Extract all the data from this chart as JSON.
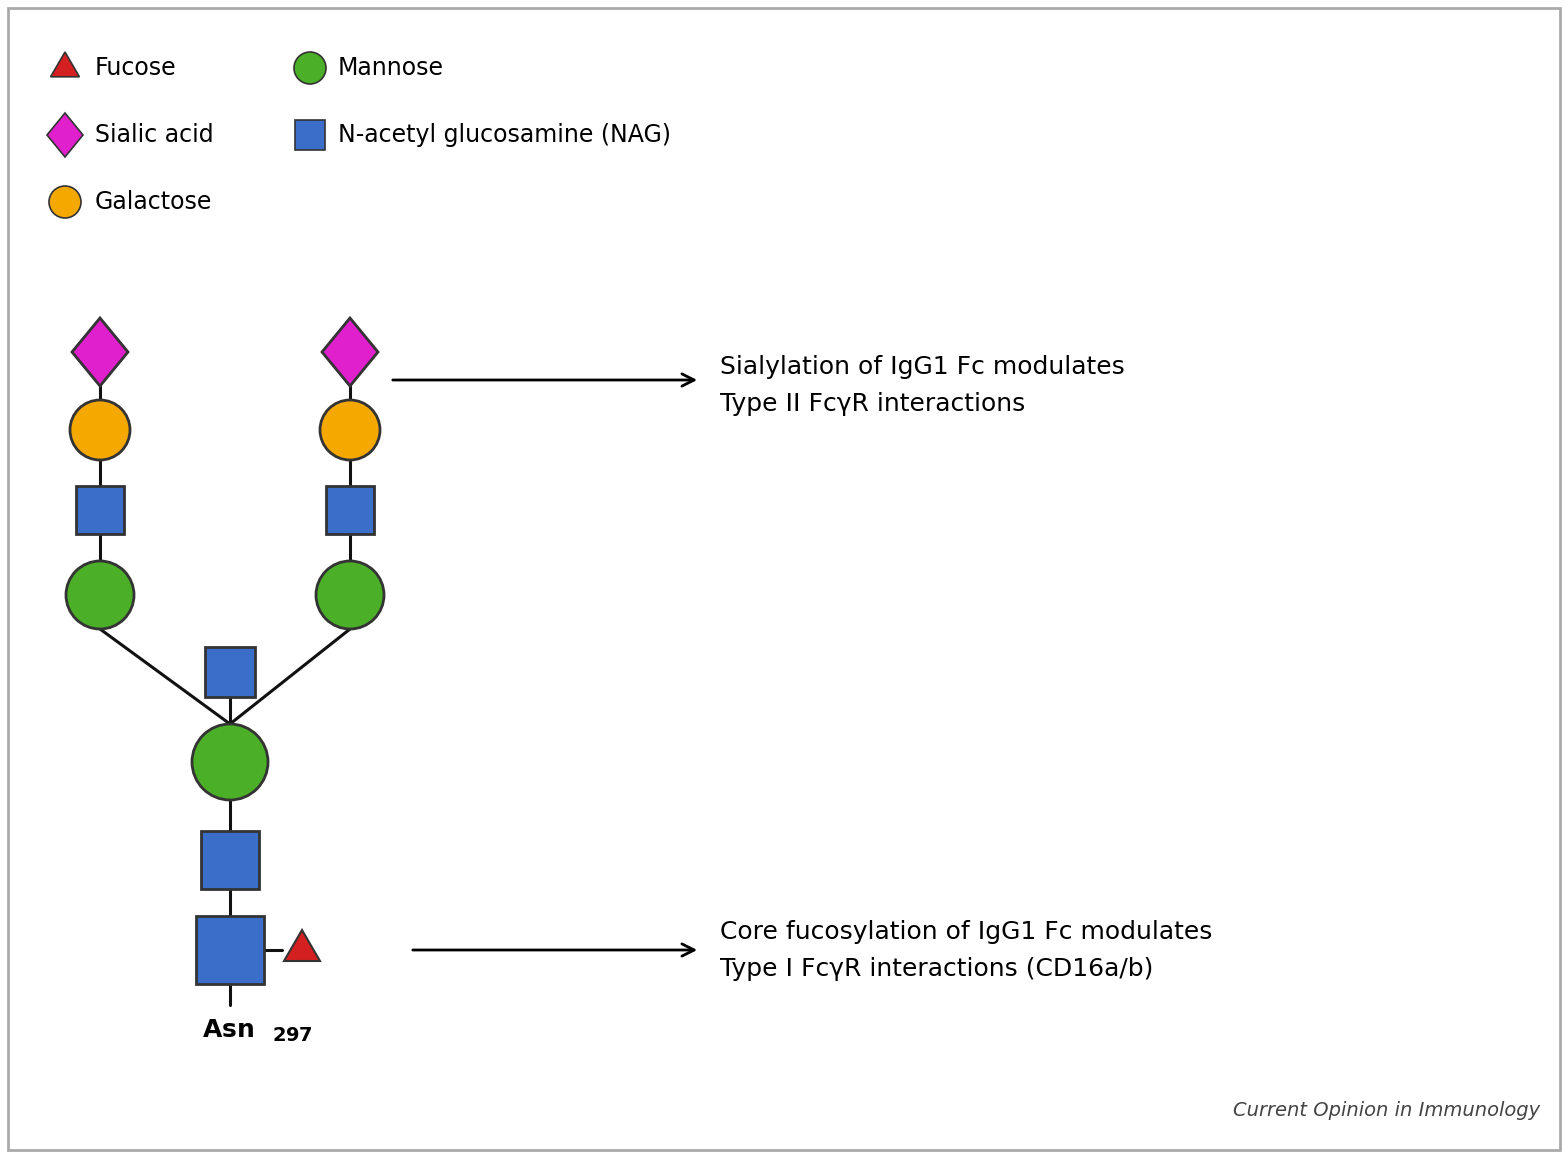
{
  "background_color": "#ffffff",
  "border_color": "#aaaaaa",
  "annotation1": "Sialylation of IgG1 Fc modulates\nType II FcγR interactions",
  "annotation2": "Core fucosylation of IgG1 Fc modulates\nType I FcγR interactions (CD16a/b)",
  "source_text": "Current Opinion in Immunology",
  "colors": {
    "mannose": "#4caf28",
    "NAG": "#3a6ec8",
    "galactose": "#f5a800",
    "sialic_acid": "#e020cc",
    "fucose": "#d42020"
  },
  "line_color": "#111111",
  "line_lw": 2.2
}
